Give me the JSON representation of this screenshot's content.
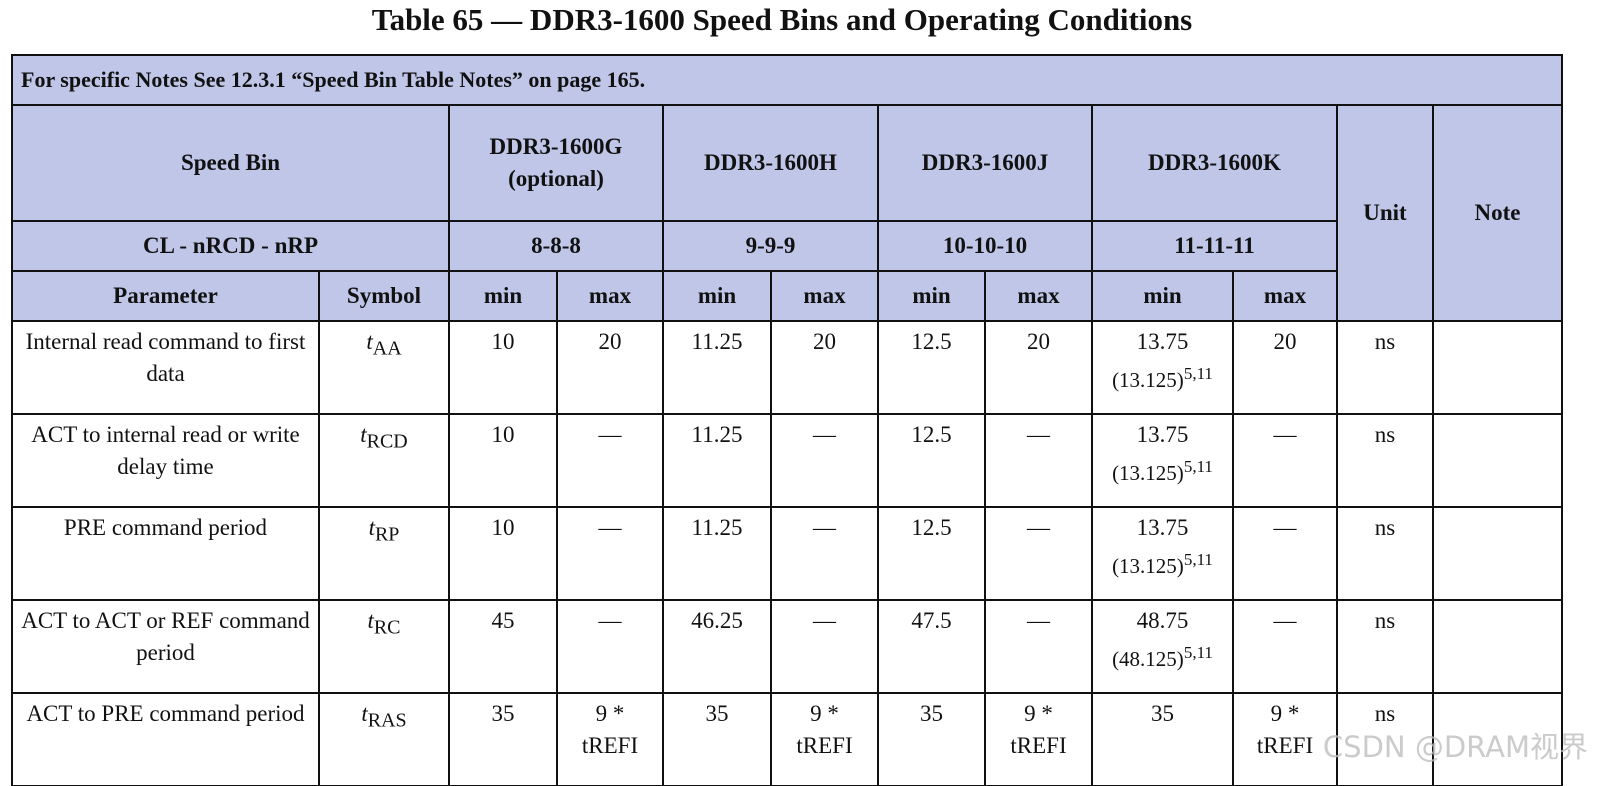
{
  "title": "Table 65 — DDR3-1600 Speed Bins and Operating Conditions",
  "note": "For specific Notes See 12.3.1 “Speed Bin Table Notes” on page 165.",
  "header": {
    "speed_bin": "Speed Bin",
    "bins": [
      {
        "name": "DDR3-1600G",
        "sub": "(optional)",
        "timing": "8-8-8"
      },
      {
        "name": "DDR3-1600H",
        "sub": "",
        "timing": "9-9-9"
      },
      {
        "name": "DDR3-1600J",
        "sub": "",
        "timing": "10-10-10"
      },
      {
        "name": "DDR3-1600K",
        "sub": "",
        "timing": "11-11-11"
      }
    ],
    "cl_label": "CL - nRCD - nRP",
    "unit": "Unit",
    "note": "Note",
    "parameter": "Parameter",
    "symbol": "Symbol",
    "min": "min",
    "max": "max"
  },
  "rows": [
    {
      "param": "Internal read command to first data",
      "sym": "t",
      "sub": "AA",
      "v": [
        "10",
        "20",
        "11.25",
        "20",
        "12.5",
        "20",
        "13.75",
        "20"
      ],
      "alt": "(13.125)",
      "alt_sup": "5,11",
      "unit": "ns"
    },
    {
      "param": "ACT to internal read or write delay time",
      "sym": "t",
      "sub": "RCD",
      "v": [
        "10",
        "—",
        "11.25",
        "—",
        "12.5",
        "—",
        "13.75",
        "—"
      ],
      "alt": "(13.125)",
      "alt_sup": "5,11",
      "unit": "ns"
    },
    {
      "param": "PRE command period",
      "sym": "t",
      "sub": "RP",
      "v": [
        "10",
        "—",
        "11.25",
        "—",
        "12.5",
        "—",
        "13.75",
        "—"
      ],
      "alt": "(13.125)",
      "alt_sup": "5,11",
      "unit": "ns"
    },
    {
      "param": "ACT to ACT or REF command period",
      "sym": "t",
      "sub": "RC",
      "v": [
        "45",
        "—",
        "46.25",
        "—",
        "47.5",
        "—",
        "48.75",
        "—"
      ],
      "alt": "(48.125)",
      "alt_sup": "5,11",
      "unit": "ns"
    },
    {
      "param": "ACT to PRE command period",
      "sym": "t",
      "sub": "RAS",
      "v": [
        "35",
        "9 * tREFI",
        "35",
        "9 * tREFI",
        "35",
        "9 * tREFI",
        "35",
        "9 * tREFI"
      ],
      "unit": "ns"
    }
  ],
  "watermark": "CSDN @DRAM视界"
}
